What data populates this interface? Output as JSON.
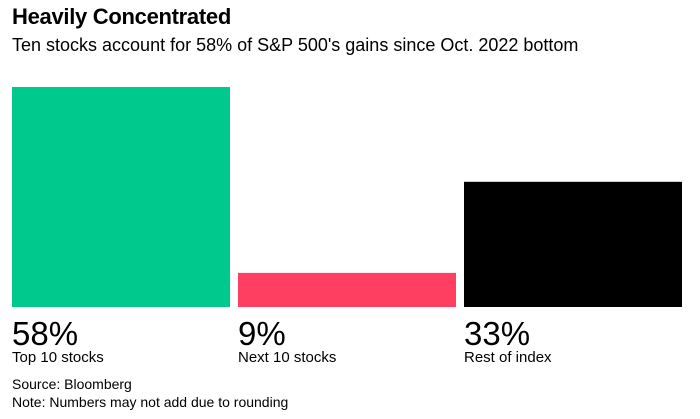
{
  "title": "Heavily Concentrated",
  "subtitle": "Ten stocks account for 58% of S&P 500's gains since Oct. 2022 bottom",
  "chart_data": {
    "type": "bar",
    "categories": [
      "Top 10 stocks",
      "Next 10 stocks",
      "Rest of index"
    ],
    "values": [
      58,
      9,
      33
    ],
    "value_labels": [
      "58%",
      "9%",
      "33%"
    ],
    "colors": [
      "#00c98d",
      "#ff3f62",
      "#000000"
    ],
    "ylim": [
      0,
      58
    ],
    "grid": false
  },
  "source": "Source: Bloomberg",
  "note": "Note: Numbers may not add due to rounding"
}
